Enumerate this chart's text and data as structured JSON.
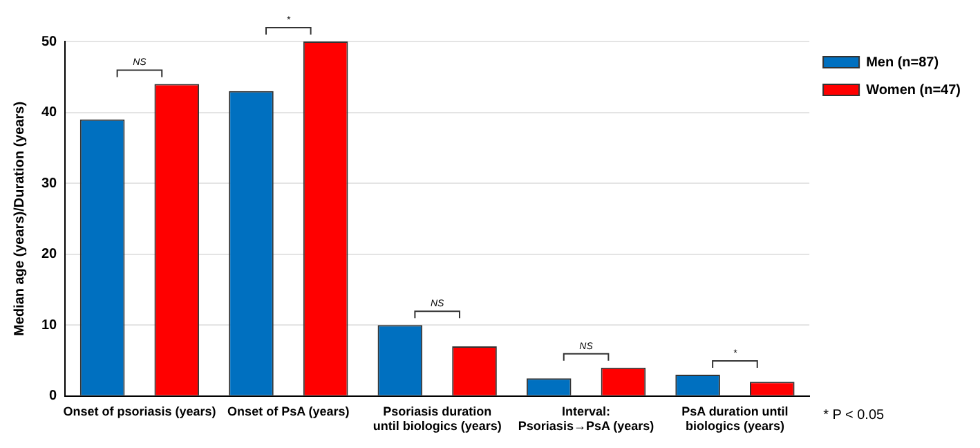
{
  "chart_data": {
    "type": "bar",
    "ylabel": "Median age (years)/Duration (years)",
    "categories": [
      "Onset of psoriasis (years)",
      "Onset of PsA (years)",
      "Psoriasis duration\nuntil biologics (years)",
      "Interval:\nPsoriasis→PsA (years)",
      "PsA duration until\nbiologics (years)"
    ],
    "series": [
      {
        "name": "Men (n=87)",
        "color": "#0070c0",
        "values": [
          39,
          43,
          10,
          2.5,
          3
        ]
      },
      {
        "name": "Women (n=47)",
        "color": "#ff0000",
        "values": [
          44,
          50,
          7,
          4,
          2
        ]
      }
    ],
    "ylim": [
      0,
      50
    ],
    "yticks": [
      0,
      10,
      20,
      30,
      40,
      50
    ],
    "grid": "y",
    "legend": "top right",
    "annotations": [
      "NS",
      "*",
      "NS",
      "NS",
      "*",
      "* P < 0.05"
    ]
  }
}
